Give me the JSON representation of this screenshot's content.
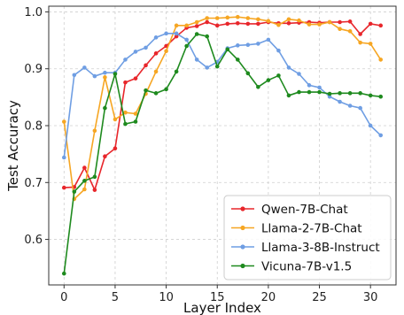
{
  "chart_data": {
    "type": "line",
    "xlabel": "Layer Index",
    "ylabel": "Test Accuracy",
    "xlim": [
      -1.5,
      32.5
    ],
    "ylim": [
      0.52,
      1.01
    ],
    "xticks": [
      0,
      5,
      10,
      15,
      20,
      25,
      30
    ],
    "yticks": [
      0.6,
      0.7,
      0.8,
      0.9,
      1.0
    ],
    "ytick_labels": [
      "0.6",
      "0.7",
      "0.8",
      "0.9",
      "1.0"
    ],
    "grid": true,
    "legend_position": "bottom-right",
    "x": [
      0,
      1,
      2,
      3,
      4,
      5,
      6,
      7,
      8,
      9,
      10,
      11,
      12,
      13,
      14,
      15,
      16,
      17,
      18,
      19,
      20,
      21,
      22,
      23,
      24,
      25,
      26,
      27,
      28,
      29,
      30,
      31
    ],
    "series": [
      {
        "name": "Qwen-7B-Chat",
        "color": "#e8262b",
        "values": [
          0.691,
          0.692,
          0.726,
          0.687,
          0.746,
          0.76,
          0.876,
          0.883,
          0.906,
          0.927,
          0.94,
          0.957,
          0.972,
          0.975,
          0.982,
          0.976,
          0.979,
          0.98,
          0.979,
          0.979,
          0.982,
          0.98,
          0.98,
          0.981,
          0.982,
          0.981,
          0.982,
          0.982,
          0.983,
          0.961,
          0.979,
          0.976
        ]
      },
      {
        "name": "Llama-2-7B-Chat",
        "color": "#f6a623",
        "values": [
          0.807,
          0.671,
          0.688,
          0.791,
          0.885,
          0.811,
          0.823,
          0.821,
          0.856,
          0.895,
          0.931,
          0.976,
          0.976,
          0.982,
          0.989,
          0.989,
          0.99,
          0.991,
          0.989,
          0.987,
          0.984,
          0.977,
          0.987,
          0.985,
          0.978,
          0.978,
          0.982,
          0.97,
          0.966,
          0.946,
          0.944,
          0.916
        ]
      },
      {
        "name": "Llama-3-8B-Instruct",
        "color": "#6f9ee3",
        "values": [
          0.744,
          0.889,
          0.902,
          0.887,
          0.893,
          0.893,
          0.916,
          0.93,
          0.937,
          0.955,
          0.962,
          0.962,
          0.951,
          0.916,
          0.902,
          0.912,
          0.936,
          0.941,
          0.942,
          0.944,
          0.951,
          0.932,
          0.902,
          0.891,
          0.871,
          0.867,
          0.851,
          0.842,
          0.835,
          0.831,
          0.8,
          0.783
        ]
      },
      {
        "name": "Vicuna-7B-v1.5",
        "color": "#1e8a1e",
        "values": [
          0.54,
          0.684,
          0.703,
          0.71,
          0.831,
          0.891,
          0.803,
          0.807,
          0.862,
          0.857,
          0.864,
          0.895,
          0.94,
          0.961,
          0.957,
          0.904,
          0.934,
          0.916,
          0.892,
          0.868,
          0.88,
          0.888,
          0.853,
          0.859,
          0.859,
          0.859,
          0.856,
          0.857,
          0.857,
          0.857,
          0.853,
          0.851
        ]
      }
    ]
  }
}
